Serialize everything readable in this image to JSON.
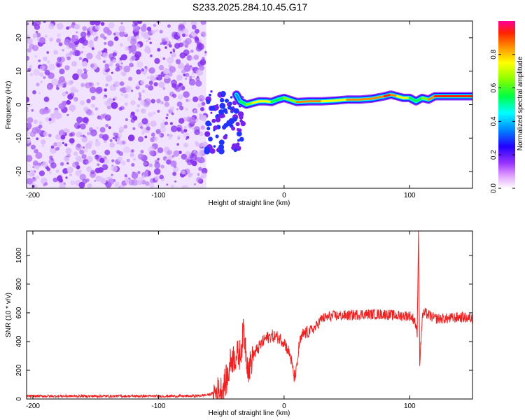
{
  "title": "S233.2025.284.10.45.G17",
  "colors": {
    "snr_line": "#ee2222",
    "axis": "#000000",
    "background": "#ffffff"
  },
  "chart_data": [
    {
      "type": "heatmap",
      "panel": "spectrogram",
      "title": "S233.2025.284.10.45.G17",
      "xlabel": "Height of straight line (km)",
      "ylabel": "Frequency (Hz)",
      "xlim": [
        -205,
        150
      ],
      "ylim": [
        -25,
        25
      ],
      "xticks": [
        -200,
        -100,
        0,
        100
      ],
      "yticks": [
        -20,
        -10,
        0,
        10,
        20
      ],
      "noise_region_x": [
        -205,
        -62
      ],
      "ridge": {
        "x": [
          -38,
          -35,
          -30,
          -25,
          -20,
          -15,
          -10,
          -5,
          0,
          10,
          20,
          30,
          40,
          50,
          60,
          70,
          80,
          85,
          90,
          95,
          100,
          105,
          110,
          115,
          120,
          130,
          140,
          150
        ],
        "f": [
          3,
          1,
          0,
          0.5,
          1,
          1,
          0.8,
          1.5,
          2,
          0.8,
          1,
          1,
          1.2,
          1.5,
          1.5,
          1.8,
          2.5,
          3,
          2.5,
          2,
          2,
          1,
          2,
          1.5,
          2.5,
          2.5,
          2.5,
          2.5
        ],
        "amplitude": [
          0.25,
          0.5,
          0.65,
          0.7,
          0.8,
          0.8,
          0.7,
          0.6,
          0.55,
          0.85,
          0.9,
          0.8,
          0.75,
          0.85,
          0.9,
          0.9,
          0.95,
          0.95,
          0.85,
          0.8,
          0.7,
          0.5,
          0.6,
          0.8,
          0.95,
          0.95,
          0.95,
          0.95
        ]
      },
      "colorbar": {
        "label": "Normalized spectral amplitude",
        "range": [
          0,
          1
        ],
        "ticks": [
          "0.0",
          "0.2",
          "0.4",
          "0.6",
          "0.8"
        ],
        "tick_values": [
          0,
          0.2,
          0.4,
          0.6,
          0.8
        ]
      }
    },
    {
      "type": "line",
      "panel": "snr",
      "xlabel": "Height of straight line (km)",
      "ylabel": "SNR (10 * v/v)",
      "xlim": [
        -205,
        150
      ],
      "ylim": [
        0,
        1170
      ],
      "xticks": [
        -200,
        -100,
        0,
        100
      ],
      "yticks": [
        0,
        200,
        400,
        600,
        800,
        1000
      ],
      "series": [
        {
          "name": "SNR",
          "x": [
            -205,
            -150,
            -100,
            -70,
            -60,
            -50,
            -45,
            -42,
            -38,
            -35,
            -32,
            -30,
            -28,
            -25,
            -20,
            -15,
            -10,
            -5,
            0,
            5,
            8,
            10,
            12,
            15,
            20,
            25,
            30,
            40,
            50,
            60,
            70,
            80,
            90,
            100,
            104,
            106,
            107,
            108,
            109,
            110,
            112,
            120,
            130,
            140,
            150
          ],
          "y": [
            20,
            20,
            20,
            20,
            30,
            60,
            150,
            280,
            300,
            310,
            480,
            300,
            200,
            300,
            360,
            420,
            440,
            430,
            400,
            300,
            150,
            200,
            380,
            450,
            470,
            500,
            560,
            580,
            580,
            590,
            590,
            590,
            580,
            580,
            550,
            450,
            1170,
            260,
            400,
            580,
            600,
            560,
            560,
            570,
            560
          ]
        }
      ]
    }
  ]
}
